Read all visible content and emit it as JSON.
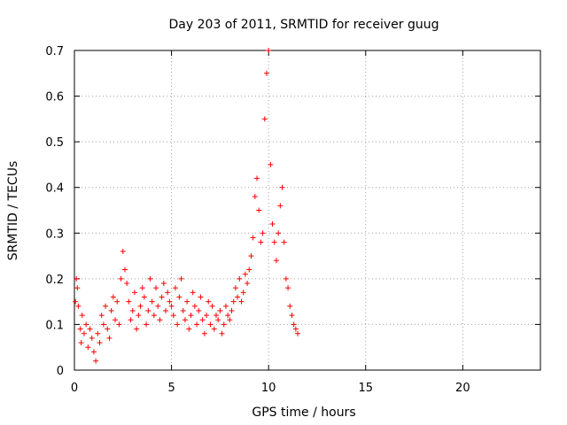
{
  "chart_data": {
    "type": "scatter",
    "title": "Day 203 of 2011, SRMTID for receiver guug",
    "xlabel": "GPS time / hours",
    "ylabel": "SRMTID / TECUs",
    "xlim": [
      0,
      24
    ],
    "ylim": [
      0,
      0.7
    ],
    "xticks": [
      0,
      5,
      10,
      15,
      20
    ],
    "xtick_labels": [
      "0",
      "5",
      "10",
      "15",
      "20"
    ],
    "yticks": [
      0,
      0.1,
      0.2,
      0.3,
      0.4,
      0.5,
      0.6,
      0.7
    ],
    "ytick_labels": [
      "0",
      "0.1",
      "0.2",
      "0.3",
      "0.4",
      "0.5",
      "0.6",
      "0.7"
    ],
    "grid": true,
    "marker": "+",
    "color": "#ff0000",
    "series": [
      {
        "name": "SRMTID",
        "x": [
          0.05,
          0.1,
          0.15,
          0.2,
          0.3,
          0.35,
          0.4,
          0.5,
          0.6,
          0.7,
          0.8,
          0.9,
          1.0,
          1.1,
          1.2,
          1.3,
          1.4,
          1.5,
          1.6,
          1.7,
          1.8,
          1.9,
          2.0,
          2.1,
          2.2,
          2.3,
          2.4,
          2.5,
          2.6,
          2.7,
          2.8,
          2.9,
          3.0,
          3.1,
          3.2,
          3.3,
          3.4,
          3.5,
          3.6,
          3.7,
          3.8,
          3.9,
          4.0,
          4.1,
          4.2,
          4.3,
          4.4,
          4.5,
          4.6,
          4.7,
          4.8,
          4.9,
          5.0,
          5.1,
          5.2,
          5.3,
          5.4,
          5.5,
          5.6,
          5.7,
          5.8,
          5.9,
          6.0,
          6.1,
          6.2,
          6.3,
          6.4,
          6.5,
          6.6,
          6.7,
          6.8,
          6.9,
          7.0,
          7.1,
          7.2,
          7.3,
          7.4,
          7.5,
          7.6,
          7.7,
          7.8,
          7.9,
          8.0,
          8.1,
          8.2,
          8.3,
          8.4,
          8.5,
          8.6,
          8.7,
          8.8,
          8.9,
          9.0,
          9.1,
          9.2,
          9.3,
          9.4,
          9.5,
          9.6,
          9.7,
          9.8,
          9.9,
          10.0,
          10.1,
          10.2,
          10.3,
          10.4,
          10.5,
          10.6,
          10.7,
          10.8,
          10.9,
          11.0,
          11.1,
          11.2,
          11.3,
          11.4,
          11.5
        ],
        "y": [
          0.15,
          0.2,
          0.18,
          0.14,
          0.09,
          0.06,
          0.12,
          0.08,
          0.1,
          0.05,
          0.09,
          0.07,
          0.04,
          0.02,
          0.08,
          0.06,
          0.12,
          0.1,
          0.14,
          0.09,
          0.07,
          0.13,
          0.16,
          0.11,
          0.15,
          0.1,
          0.2,
          0.26,
          0.22,
          0.19,
          0.15,
          0.11,
          0.13,
          0.17,
          0.09,
          0.12,
          0.14,
          0.18,
          0.16,
          0.1,
          0.13,
          0.2,
          0.15,
          0.12,
          0.18,
          0.14,
          0.11,
          0.16,
          0.19,
          0.13,
          0.17,
          0.15,
          0.14,
          0.12,
          0.18,
          0.1,
          0.16,
          0.2,
          0.13,
          0.11,
          0.15,
          0.09,
          0.12,
          0.17,
          0.14,
          0.1,
          0.13,
          0.16,
          0.11,
          0.08,
          0.12,
          0.15,
          0.1,
          0.14,
          0.09,
          0.12,
          0.11,
          0.13,
          0.08,
          0.1,
          0.14,
          0.12,
          0.11,
          0.13,
          0.15,
          0.18,
          0.16,
          0.2,
          0.15,
          0.17,
          0.21,
          0.19,
          0.22,
          0.25,
          0.29,
          0.38,
          0.42,
          0.35,
          0.28,
          0.3,
          0.55,
          0.65,
          0.7,
          0.45,
          0.32,
          0.28,
          0.24,
          0.3,
          0.36,
          0.4,
          0.28,
          0.2,
          0.18,
          0.14,
          0.12,
          0.1,
          0.09,
          0.08
        ]
      }
    ]
  }
}
